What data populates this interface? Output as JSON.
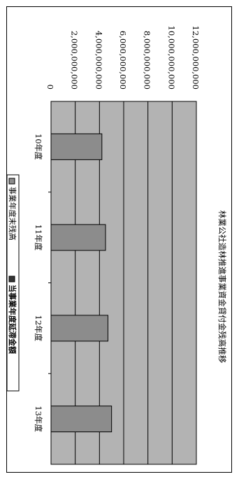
{
  "chart_data": {
    "type": "bar",
    "title": "林業公社造林推進事業資金貸付金残高推移",
    "categories": [
      "10年度",
      "11年度",
      "12年度",
      "13年度"
    ],
    "series": [
      {
        "name": "事業年度末残高",
        "values": [
          4200000000,
          4500000000,
          4700000000,
          5000000000
        ]
      },
      {
        "name": "当事業年度延滞金額",
        "values": [
          0,
          0,
          0,
          0
        ]
      }
    ],
    "ylim": [
      0,
      12000000000
    ],
    "ytick_labels": [
      "0",
      "2,000,000,000",
      "4,000,000,000",
      "6,000,000,000",
      "8,000,000,000",
      "10,000,000,000",
      "12,000,000,000"
    ],
    "grid": true,
    "legend_position": "bottom",
    "orientation": "rotated-90-clockwise"
  },
  "colors": {
    "plot_background": "#b3b3b3",
    "bar_fill": "#8c8c8c",
    "border": "#000000",
    "gridline": "#000000"
  }
}
